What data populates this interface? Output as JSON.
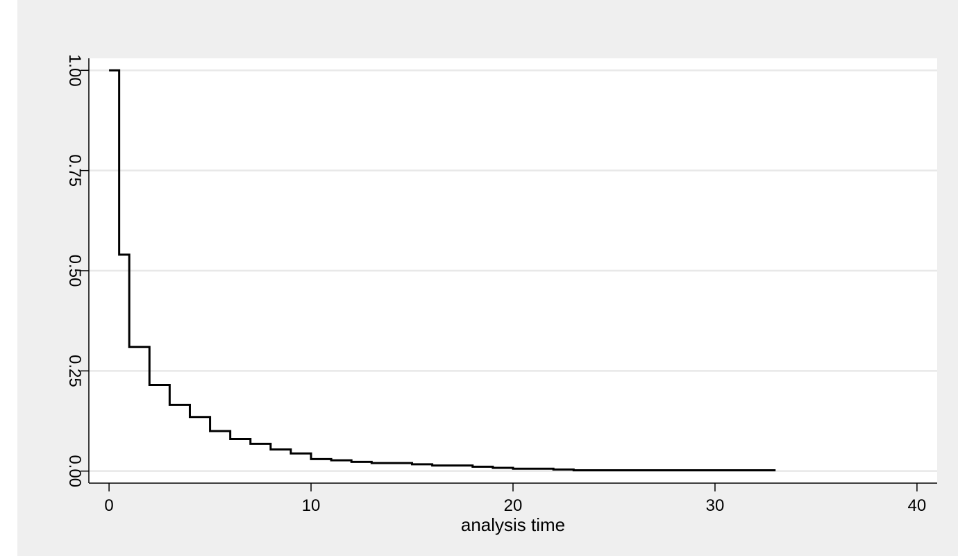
{
  "chart_data": {
    "type": "line",
    "step": true,
    "title": "",
    "xlabel": "analysis time",
    "ylabel": "",
    "xlim": [
      -1,
      41
    ],
    "ylim": [
      -0.03,
      1.03
    ],
    "x_ticks": [
      0,
      10,
      20,
      30,
      40
    ],
    "x_tick_labels": [
      "0",
      "10",
      "20",
      "30",
      "40"
    ],
    "y_ticks": [
      0,
      0.25,
      0.5,
      0.75,
      1
    ],
    "y_tick_labels": [
      "0.00",
      "0.25",
      "0.50",
      "0.75",
      "1.00"
    ],
    "grid": "horizontal",
    "colors": {
      "outer_background": "#efefef",
      "plot_background": "#ffffff",
      "grid": "#e8e8e8",
      "line": "#000000"
    },
    "series": [
      {
        "x": [
          0,
          0.5,
          1,
          2,
          3,
          4,
          5,
          6,
          7,
          8,
          9,
          10,
          11,
          12,
          13,
          15,
          16,
          18,
          19,
          20,
          22,
          23,
          33
        ],
        "y": [
          1.0,
          0.54,
          0.31,
          0.215,
          0.165,
          0.135,
          0.1,
          0.08,
          0.068,
          0.054,
          0.044,
          0.03,
          0.027,
          0.023,
          0.02,
          0.017,
          0.014,
          0.011,
          0.008,
          0.006,
          0.004,
          0.002,
          0.002
        ]
      }
    ]
  }
}
